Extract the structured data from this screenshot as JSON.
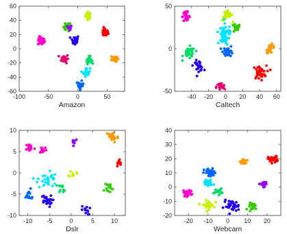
{
  "chart_data": [
    {
      "type": "scatter",
      "xlabel": "Amazon",
      "xlim": [
        -100,
        80
      ],
      "ylim": [
        -60,
        60
      ],
      "xticks": [
        -100,
        -50,
        0,
        50
      ],
      "yticks": [
        -60,
        -40,
        -20,
        0,
        20,
        40,
        60
      ],
      "grid": false,
      "legend": "none",
      "clusters": [
        {
          "color": "#c8f000",
          "x": 18,
          "y": 47,
          "spread": 2.5,
          "count": 26
        },
        {
          "color": "#33cc00",
          "x": -18,
          "y": 31,
          "spread": 3,
          "count": 26
        },
        {
          "color": "#9900ff",
          "x": -14,
          "y": 29,
          "spread": 2,
          "count": 10
        },
        {
          "color": "#ff0000",
          "x": 46,
          "y": 23,
          "spread": 3,
          "count": 30
        },
        {
          "color": "#ff00cc",
          "x": -62,
          "y": 11,
          "spread": 3,
          "count": 28
        },
        {
          "color": "#2200ee",
          "x": -5,
          "y": 12,
          "spread": 3.5,
          "count": 30
        },
        {
          "color": "#e8006e",
          "x": -22,
          "y": -14,
          "spread": 3,
          "count": 28
        },
        {
          "color": "#00dd66",
          "x": 19,
          "y": -16,
          "spread": 2.5,
          "count": 26
        },
        {
          "color": "#ff9900",
          "x": 62,
          "y": -14,
          "spread": 2.5,
          "count": 26
        },
        {
          "color": "#00e5ff",
          "x": 15,
          "y": -33,
          "spread": 3,
          "count": 28
        },
        {
          "color": "#0066ff",
          "x": 4,
          "y": -52,
          "spread": 3,
          "count": 28
        }
      ]
    },
    {
      "type": "scatter",
      "xlabel": "Caltech",
      "xlim": [
        -60,
        65
      ],
      "ylim": [
        -50,
        50
      ],
      "xticks": [
        -40,
        -20,
        0,
        20,
        40,
        60
      ],
      "yticks": [
        -50,
        0,
        50
      ],
      "grid": false,
      "legend": "none",
      "clusters": [
        {
          "color": "#ff00cc",
          "x": -47,
          "y": 38,
          "spread": 2.5,
          "count": 28
        },
        {
          "color": "#c8f000",
          "x": 2,
          "y": 39,
          "spread": 3,
          "count": 30
        },
        {
          "color": "#00e5ff",
          "x": 0,
          "y": 20,
          "spread": 4.5,
          "count": 40
        },
        {
          "color": "#33cc00",
          "x": 12,
          "y": 24,
          "spread": 2.5,
          "count": 22
        },
        {
          "color": "#00e5ff",
          "x": -2,
          "y": 9,
          "spread": 2.5,
          "count": 16
        },
        {
          "color": "#00dd66",
          "x": -43,
          "y": -5,
          "spread": 3.5,
          "count": 32
        },
        {
          "color": "#0066ff",
          "x": 3,
          "y": -3,
          "spread": 3,
          "count": 30
        },
        {
          "color": "#ff9900",
          "x": 53,
          "y": 0,
          "spread": 2.5,
          "count": 26
        },
        {
          "color": "#2200ee",
          "x": -32,
          "y": -20,
          "spread": 3,
          "count": 28
        },
        {
          "color": "#ff0000",
          "x": 40,
          "y": -28,
          "spread": 4,
          "count": 40
        },
        {
          "color": "#e8006e",
          "x": -6,
          "y": -45,
          "spread": 2.5,
          "count": 24
        }
      ]
    },
    {
      "type": "scatter",
      "xlabel": "Dslr",
      "xlim": [
        -12,
        12.5
      ],
      "ylim": [
        -10,
        10
      ],
      "xticks": [
        -10,
        -5,
        0,
        5,
        10
      ],
      "yticks": [
        -10,
        -5,
        0,
        5,
        10
      ],
      "grid": false,
      "legend": "none",
      "clusters": [
        {
          "color": "#ff9900",
          "x": 9.5,
          "y": 8.5,
          "spread": 0.7,
          "count": 28
        },
        {
          "color": "#ff00cc",
          "x": -9.5,
          "y": 6,
          "spread": 0.5,
          "count": 16
        },
        {
          "color": "#ff00cc",
          "x": -6.5,
          "y": 5.5,
          "spread": 0.45,
          "count": 12
        },
        {
          "color": "#9900ff",
          "x": 0.6,
          "y": 7.5,
          "spread": 0.4,
          "count": 8
        },
        {
          "color": "#ff0000",
          "x": 11.2,
          "y": 2.3,
          "spread": 0.45,
          "count": 10
        },
        {
          "color": "#00e5ff",
          "x": -5.5,
          "y": -1.5,
          "spread": 1.1,
          "count": 30
        },
        {
          "color": "#c8f000",
          "x": 0.4,
          "y": -0.2,
          "spread": 0.4,
          "count": 10
        },
        {
          "color": "#00dd66",
          "x": -2,
          "y": -3.5,
          "spread": 0.5,
          "count": 10
        },
        {
          "color": "#33cc00",
          "x": 8.3,
          "y": -3.5,
          "spread": 0.7,
          "count": 16
        },
        {
          "color": "#0066ff",
          "x": -9.8,
          "y": -5.3,
          "spread": 0.7,
          "count": 14
        },
        {
          "color": "#2200ee",
          "x": -5.8,
          "y": -6.6,
          "spread": 0.7,
          "count": 24
        },
        {
          "color": "#2200ee",
          "x": 3.4,
          "y": -8.8,
          "spread": 0.5,
          "count": 12
        }
      ]
    },
    {
      "type": "scatter",
      "xlabel": "Webcam",
      "xlim": [
        -27,
        27
      ],
      "ylim": [
        -20,
        40
      ],
      "xticks": [
        -20,
        -10,
        0,
        10,
        20
      ],
      "yticks": [
        -20,
        -10,
        0,
        10,
        20,
        30,
        40
      ],
      "grid": false,
      "legend": "none",
      "clusters": [
        {
          "color": "#ff9900",
          "x": 8,
          "y": 18,
          "spread": 0.9,
          "count": 20
        },
        {
          "color": "#ff0000",
          "x": 23,
          "y": 19.5,
          "spread": 1.2,
          "count": 30
        },
        {
          "color": "#0066ff",
          "x": -9,
          "y": 10,
          "spread": 1.5,
          "count": 40
        },
        {
          "color": "#00e5ff",
          "x": -10,
          "y": 3,
          "spread": 1.3,
          "count": 30
        },
        {
          "color": "#00dd66",
          "x": -5,
          "y": -3,
          "spread": 1,
          "count": 18
        },
        {
          "color": "#ff00cc",
          "x": -20,
          "y": -4,
          "spread": 1.3,
          "count": 22
        },
        {
          "color": "#9900ff",
          "x": 18,
          "y": 1.8,
          "spread": 1,
          "count": 18
        },
        {
          "color": "#c8f000",
          "x": -10,
          "y": -12.5,
          "spread": 1.5,
          "count": 36
        },
        {
          "color": "#2200ee",
          "x": 2,
          "y": -13.5,
          "spread": 2,
          "count": 36
        },
        {
          "color": "#33cc00",
          "x": 13,
          "y": -13.5,
          "spread": 1.2,
          "count": 28
        }
      ]
    }
  ]
}
